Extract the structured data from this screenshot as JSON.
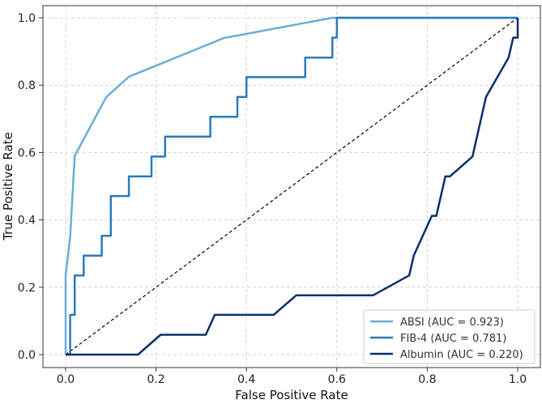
{
  "chart_data": {
    "type": "line",
    "title": "",
    "xlabel": "False Positive Rate",
    "ylabel": "True Positive Rate",
    "xlim": [
      0,
      1
    ],
    "ylim": [
      0,
      1
    ],
    "grid": true,
    "legend_position": "bottom-right",
    "xticks": [
      0.0,
      0.2,
      0.4,
      0.6,
      0.8,
      1.0
    ],
    "yticks": [
      0.0,
      0.2,
      0.4,
      0.6,
      0.8,
      1.0
    ],
    "xtick_labels": [
      "0.0",
      "0.2",
      "0.4",
      "0.6",
      "0.8",
      "1.0"
    ],
    "ytick_labels": [
      "0.0",
      "0.2",
      "0.4",
      "0.6",
      "0.8",
      "1.0"
    ],
    "series": [
      {
        "name": "ABSI (AUC = 0.923)",
        "color": "#6aaed6",
        "x": [
          0.0,
          0.0,
          0.01,
          0.02,
          0.09,
          0.14,
          0.35,
          0.59,
          0.6,
          1.0
        ],
        "y": [
          0.0,
          0.235,
          0.35,
          0.59,
          0.765,
          0.825,
          0.94,
          1.0,
          1.0,
          1.0
        ]
      },
      {
        "name": "FIB-4 (AUC = 0.781)",
        "color": "#2b7bba",
        "x": [
          0.0,
          0.01,
          0.01,
          0.02,
          0.02,
          0.04,
          0.04,
          0.08,
          0.08,
          0.1,
          0.1,
          0.14,
          0.14,
          0.19,
          0.19,
          0.22,
          0.22,
          0.32,
          0.32,
          0.38,
          0.38,
          0.4,
          0.4,
          0.53,
          0.53,
          0.59,
          0.59,
          0.6,
          0.6,
          1.0,
          1.0
        ],
        "y": [
          0.0,
          0.0,
          0.118,
          0.118,
          0.235,
          0.235,
          0.294,
          0.294,
          0.353,
          0.353,
          0.471,
          0.471,
          0.529,
          0.529,
          0.588,
          0.588,
          0.647,
          0.647,
          0.706,
          0.706,
          0.765,
          0.765,
          0.824,
          0.824,
          0.882,
          0.882,
          0.941,
          0.941,
          1.0,
          1.0,
          1.0
        ]
      },
      {
        "name": "Albumin (AUC = 0.220)",
        "color": "#08306b",
        "x": [
          0.0,
          0.16,
          0.21,
          0.31,
          0.33,
          0.46,
          0.51,
          0.68,
          0.76,
          0.77,
          0.81,
          0.82,
          0.84,
          0.85,
          0.9,
          0.93,
          0.98,
          0.99,
          1.0,
          1.0
        ],
        "y": [
          0.0,
          0.0,
          0.059,
          0.059,
          0.118,
          0.118,
          0.176,
          0.176,
          0.235,
          0.294,
          0.412,
          0.412,
          0.529,
          0.529,
          0.588,
          0.765,
          0.882,
          0.941,
          0.941,
          1.0
        ]
      }
    ],
    "reference_line": {
      "name": "chance",
      "style": "dashed",
      "color": "#000000",
      "x": [
        0,
        1
      ],
      "y": [
        0,
        1
      ]
    }
  }
}
